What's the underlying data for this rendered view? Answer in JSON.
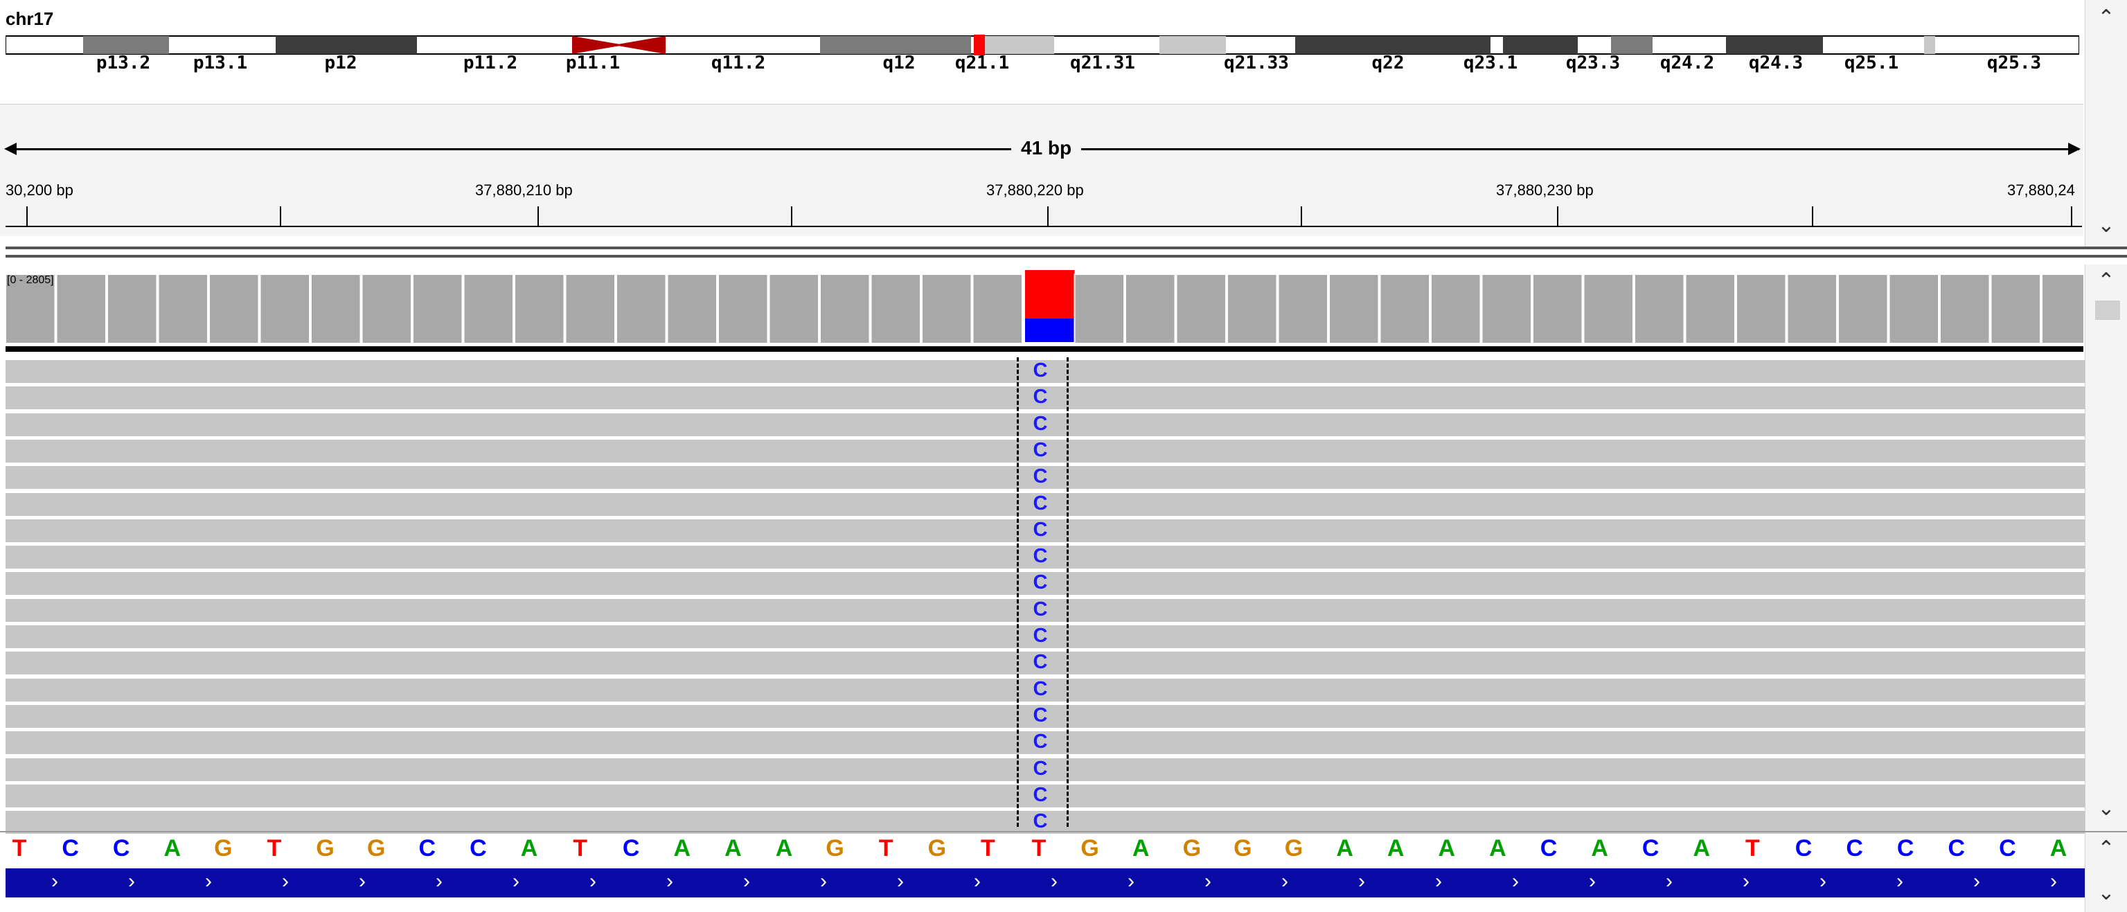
{
  "header": {
    "chromosome": "chr17",
    "span_label": "41 bp",
    "ruler_ticks": [
      "30,200 bp",
      "37,880,210 bp",
      "37,880,220 bp",
      "37,880,230 bp",
      "37,880,24"
    ]
  },
  "ideogram": {
    "bands": [
      "p13.2",
      "p13.1",
      "p12",
      "p11.2",
      "p11.1",
      "q11.2",
      "q12",
      "q21.1",
      "q21.31",
      "q21.33",
      "q22",
      "q23.1",
      "q23.3",
      "q24.2",
      "q24.3",
      "q25.1",
      "q25.3"
    ]
  },
  "coverage": {
    "range_label": "[0 - 2805]",
    "highlight_colors": {
      "top": "#ff0000",
      "bottom": "#0000ff"
    }
  },
  "reads": {
    "mismatch_base": "C",
    "row_count": 18
  },
  "sequence": {
    "bases": [
      "T",
      "C",
      "C",
      "A",
      "G",
      "T",
      "G",
      "G",
      "C",
      "C",
      "A",
      "T",
      "C",
      "A",
      "A",
      "A",
      "G",
      "T",
      "G",
      "T",
      "T",
      "G",
      "A",
      "G",
      "G",
      "G",
      "A",
      "A",
      "A",
      "A",
      "C",
      "A",
      "C",
      "A",
      "T",
      "C",
      "C",
      "C",
      "C",
      "C",
      "A"
    ],
    "colors": {
      "A": "#00a000",
      "C": "#0000ff",
      "G": "#d18200",
      "T": "#ff0000"
    }
  },
  "scrollbars": {
    "up_icon": "chevron-up-icon",
    "down_icon": "chevron-down-icon"
  }
}
